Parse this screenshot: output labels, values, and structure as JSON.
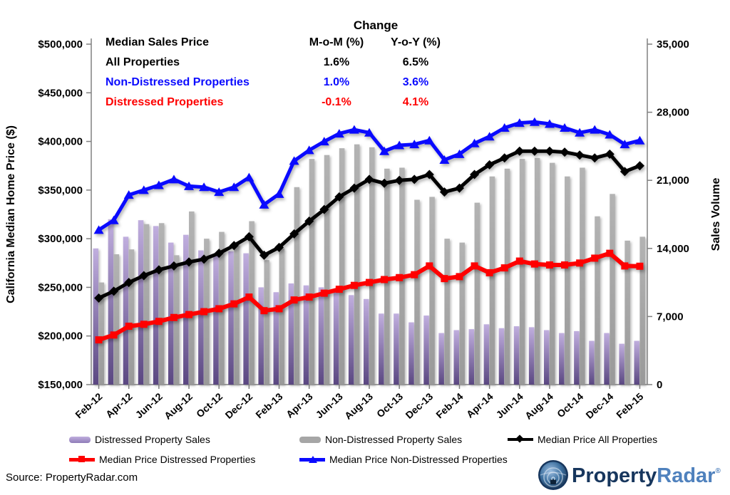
{
  "summary": {
    "title": "Change",
    "col_label": "Median Sales Price",
    "col_mom": "M-o-M (%)",
    "col_yoy": "Y-o-Y (%)",
    "rows": [
      {
        "label": "All Properties",
        "mom": "1.6%",
        "yoy": "6.5%",
        "color": "#000000"
      },
      {
        "label": "Non-Distressed Properties",
        "mom": "1.0%",
        "yoy": "3.6%",
        "color": "#0a0aff"
      },
      {
        "label": "Distressed Properties",
        "mom": "-0.1%",
        "yoy": "4.1%",
        "color": "#fe0000"
      }
    ]
  },
  "chart_data": {
    "type": "combo-bar-line",
    "x": [
      "Feb-12",
      "Mar-12",
      "Apr-12",
      "May-12",
      "Jun-12",
      "Jul-12",
      "Aug-12",
      "Sep-12",
      "Oct-12",
      "Nov-12",
      "Dec-12",
      "Jan-13",
      "Feb-13",
      "Mar-13",
      "Apr-13",
      "May-13",
      "Jun-13",
      "Jul-13",
      "Aug-13",
      "Sep-13",
      "Oct-13",
      "Nov-13",
      "Dec-13",
      "Jan-14",
      "Feb-14",
      "Mar-14",
      "Apr-14",
      "May-14",
      "Jun-14",
      "Jul-14",
      "Aug-14",
      "Sep-14",
      "Oct-14",
      "Nov-14",
      "Dec-14",
      "Jan-15",
      "Feb-15"
    ],
    "x_tick_every": 2,
    "left_axis": {
      "label": "California Median Home Price ($)",
      "min": 150000,
      "max": 500000,
      "step": 50000,
      "format": "$#,##0"
    },
    "right_axis": {
      "label": "Sales Volume",
      "min": 0,
      "max": 35000,
      "step": 7000,
      "format": "#,##0"
    },
    "grid": false,
    "legend_position": "bottom",
    "bar_series": [
      {
        "name": "Distressed Property Sales",
        "axis": "right",
        "color_top": "#c0aede",
        "color_bottom": "#5a4781",
        "values": [
          14000,
          17000,
          15200,
          16900,
          16300,
          14600,
          15400,
          13800,
          13400,
          13700,
          13500,
          10000,
          9500,
          10400,
          10200,
          10000,
          9700,
          9200,
          8800,
          7300,
          7300,
          6400,
          7100,
          5300,
          5600,
          5700,
          6200,
          5800,
          6000,
          5900,
          5600,
          5300,
          5500,
          4500,
          5300,
          4200,
          4500
        ]
      },
      {
        "name": "Non-Distressed Property Sales",
        "axis": "right",
        "color_top": "#b3b3b3",
        "color_bottom": "#999999",
        "values": [
          10500,
          13400,
          13900,
          16500,
          16600,
          13300,
          17800,
          15000,
          15700,
          14500,
          16800,
          12800,
          14000,
          20300,
          23200,
          23600,
          24300,
          24700,
          24400,
          22200,
          22300,
          19000,
          19300,
          15000,
          14600,
          18700,
          21400,
          22200,
          23200,
          23300,
          22800,
          21400,
          22300,
          17300,
          19600,
          14800,
          15200
        ]
      }
    ],
    "line_series": [
      {
        "name": "Median Price All Properties",
        "axis": "left",
        "color": "#000000",
        "marker": "diamond",
        "width": 5,
        "values": [
          239000,
          246000,
          255000,
          262000,
          268000,
          272000,
          276000,
          279000,
          285000,
          293000,
          302000,
          283000,
          291000,
          305000,
          318000,
          330000,
          343000,
          352000,
          361000,
          357000,
          360000,
          361000,
          366000,
          348000,
          352000,
          366000,
          376000,
          383000,
          390000,
          390000,
          390000,
          389000,
          386000,
          383000,
          387000,
          369000,
          375000
        ]
      },
      {
        "name": "Median Price Distressed Properties",
        "axis": "left",
        "color": "#fe0000",
        "marker": "square",
        "width": 6,
        "values": [
          196000,
          201000,
          210000,
          212000,
          215000,
          219000,
          222000,
          225000,
          228000,
          233000,
          240000,
          226000,
          228000,
          237000,
          240000,
          244000,
          248000,
          252000,
          255000,
          258000,
          260000,
          263000,
          272000,
          259000,
          261000,
          272000,
          265000,
          270000,
          277000,
          274000,
          273000,
          273000,
          275000,
          280000,
          285000,
          272000,
          271700
        ]
      },
      {
        "name": "Median Price Non-Distressed Properties",
        "axis": "left",
        "color": "#0a0aff",
        "marker": "triangle",
        "width": 5,
        "values": [
          309000,
          319000,
          345000,
          350000,
          355000,
          361000,
          354000,
          353000,
          348000,
          353000,
          363000,
          335000,
          346000,
          380000,
          391000,
          400000,
          408000,
          412000,
          409000,
          390000,
          396000,
          397000,
          401000,
          381000,
          387000,
          398000,
          405000,
          414000,
          419000,
          420000,
          418000,
          414000,
          409000,
          412000,
          407000,
          397000,
          401000
        ]
      }
    ]
  },
  "legend": {
    "row1": [
      {
        "label": "Distressed Property Sales"
      },
      {
        "label": "Non-Distressed Property Sales"
      },
      {
        "label": "Median Price All Properties"
      }
    ],
    "row2": [
      {
        "label": "Median Price Distressed Properties"
      },
      {
        "label": "Median Price Non-Distressed Properties"
      }
    ]
  },
  "source": "Source: PropertyRadar.com",
  "logo": {
    "part1": "Property",
    "part2": "Radar",
    "reg": "®",
    "color_dark": "#17365d",
    "color_light": "#4f81bd"
  },
  "colors": {
    "bar_purple": "#9a85c4",
    "bar_gray": "#a6a6a6",
    "line_black": "#000000",
    "line_red": "#fe0000",
    "line_blue": "#0a0aff",
    "axis": "#7f7f7f"
  }
}
